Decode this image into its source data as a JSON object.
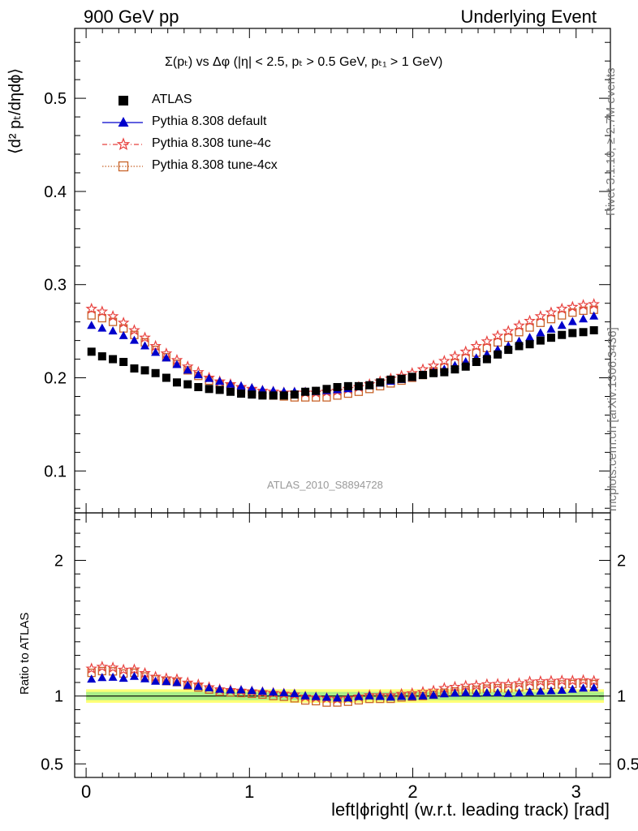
{
  "header": {
    "left": "900 GeV pp",
    "right": "Underlying Event"
  },
  "side": {
    "rivet": "Rivet 3.1.10, ≥ 2.7M events",
    "mcplots": "mcplots.cern.ch [arXiv:1306.3436]"
  },
  "subtitle": "Σ(pₜ) vs Δφ (|η| < 2.5, pₜ > 0.5 GeV, pₜ₁ > 1 GeV)",
  "watermark": "ATLAS_2010_S8894728",
  "xlabel": "left|ϕright| (w.r.t. leading track) [rad]",
  "ylabel_top": "⟨d² pₜ/dηdϕ⟩",
  "ylabel_bottom": "Ratio to ATLAS",
  "legend": [
    {
      "label": "ATLAS"
    },
    {
      "label": "Pythia 8.308 default"
    },
    {
      "label": "Pythia 8.308 tune-4c"
    },
    {
      "label": "Pythia 8.308 tune-4cx"
    }
  ],
  "chart_data": {
    "type": "scatter",
    "x": [
      0.033,
      0.098,
      0.164,
      0.229,
      0.295,
      0.36,
      0.425,
      0.491,
      0.556,
      0.622,
      0.687,
      0.753,
      0.818,
      0.884,
      0.949,
      1.015,
      1.08,
      1.146,
      1.211,
      1.276,
      1.342,
      1.407,
      1.473,
      1.538,
      1.604,
      1.669,
      1.735,
      1.8,
      1.865,
      1.931,
      1.996,
      2.062,
      2.127,
      2.193,
      2.258,
      2.324,
      2.389,
      2.454,
      2.52,
      2.585,
      2.651,
      2.716,
      2.782,
      2.847,
      2.913,
      2.978,
      3.044,
      3.109
    ],
    "xlim": [
      -0.07,
      3.21
    ],
    "xticks": [
      0,
      1,
      2,
      3
    ],
    "main": {
      "ylim": [
        0.055,
        0.575
      ],
      "yticks": [
        0.1,
        0.2,
        0.3,
        0.4,
        0.5
      ],
      "series": [
        {
          "name": "ATLAS",
          "color": "#000000",
          "marker": "square",
          "values": [
            0.228,
            0.223,
            0.22,
            0.217,
            0.21,
            0.208,
            0.205,
            0.2,
            0.195,
            0.193,
            0.19,
            0.188,
            0.187,
            0.185,
            0.183,
            0.182,
            0.181,
            0.181,
            0.181,
            0.182,
            0.185,
            0.186,
            0.188,
            0.19,
            0.191,
            0.191,
            0.192,
            0.195,
            0.198,
            0.199,
            0.201,
            0.203,
            0.205,
            0.206,
            0.209,
            0.212,
            0.217,
            0.22,
            0.225,
            0.23,
            0.234,
            0.236,
            0.24,
            0.243,
            0.246,
            0.248,
            0.249,
            0.251
          ]
        },
        {
          "name": "Pythia 8.308 default",
          "color": "#0000cc",
          "marker": "triangle",
          "values": [
            0.256,
            0.253,
            0.25,
            0.245,
            0.24,
            0.234,
            0.227,
            0.221,
            0.214,
            0.208,
            0.203,
            0.199,
            0.196,
            0.193,
            0.191,
            0.189,
            0.187,
            0.186,
            0.185,
            0.185,
            0.185,
            0.185,
            0.186,
            0.187,
            0.188,
            0.19,
            0.192,
            0.194,
            0.196,
            0.198,
            0.2,
            0.203,
            0.206,
            0.209,
            0.213,
            0.217,
            0.221,
            0.225,
            0.23,
            0.234,
            0.239,
            0.243,
            0.248,
            0.252,
            0.256,
            0.26,
            0.263,
            0.266
          ]
        },
        {
          "name": "Pythia 8.308 tune-4c",
          "color": "#e8423f",
          "marker": "star",
          "values": [
            0.274,
            0.271,
            0.266,
            0.259,
            0.251,
            0.243,
            0.234,
            0.226,
            0.219,
            0.212,
            0.206,
            0.2,
            0.196,
            0.193,
            0.19,
            0.188,
            0.186,
            0.185,
            0.184,
            0.184,
            0.184,
            0.184,
            0.185,
            0.186,
            0.188,
            0.19,
            0.193,
            0.196,
            0.199,
            0.202,
            0.205,
            0.209,
            0.213,
            0.218,
            0.223,
            0.228,
            0.234,
            0.239,
            0.245,
            0.25,
            0.256,
            0.261,
            0.266,
            0.27,
            0.274,
            0.276,
            0.278,
            0.279
          ]
        },
        {
          "name": "Pythia 8.308 tune-4cx",
          "color": "#c8642a",
          "marker": "open-square",
          "values": [
            0.267,
            0.264,
            0.26,
            0.253,
            0.246,
            0.238,
            0.23,
            0.222,
            0.215,
            0.208,
            0.202,
            0.197,
            0.193,
            0.19,
            0.187,
            0.185,
            0.183,
            0.181,
            0.18,
            0.179,
            0.179,
            0.179,
            0.179,
            0.181,
            0.183,
            0.185,
            0.188,
            0.191,
            0.194,
            0.197,
            0.2,
            0.203,
            0.207,
            0.211,
            0.216,
            0.221,
            0.227,
            0.232,
            0.238,
            0.243,
            0.249,
            0.254,
            0.259,
            0.263,
            0.267,
            0.27,
            0.272,
            0.273
          ]
        }
      ]
    },
    "ratio": {
      "ylim": [
        0.4,
        2.35
      ],
      "yticks": [
        0.5,
        1,
        2
      ],
      "reference": 1,
      "bands": [
        {
          "lo": 0.95,
          "hi": 1.05,
          "color": "#ffff77"
        },
        {
          "lo": 0.97,
          "hi": 1.03,
          "color": "#aaee88"
        }
      ]
    }
  }
}
